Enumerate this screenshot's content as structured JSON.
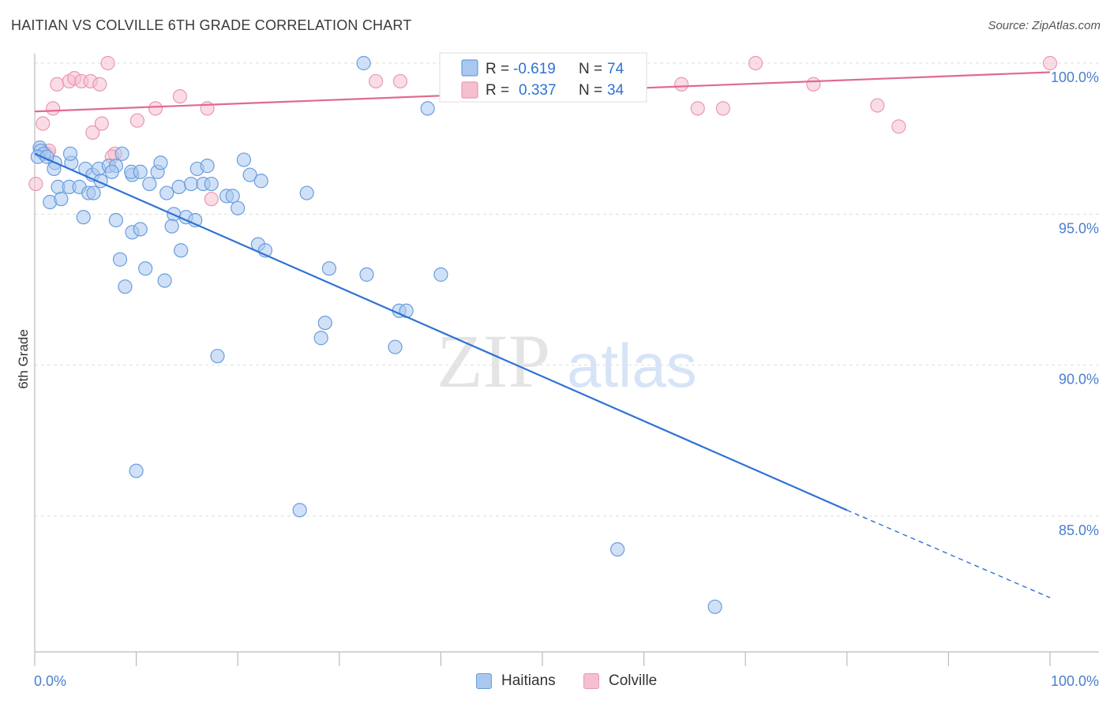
{
  "header": {
    "title": "HAITIAN VS COLVILLE 6TH GRADE CORRELATION CHART",
    "source": "Source: ZipAtlas.com"
  },
  "watermark": {
    "zip": "ZIP",
    "atlas": "atlas"
  },
  "colors": {
    "blue_fill": "#a9c8f0",
    "blue_stroke": "#6a9ddc",
    "blue_line": "#2f72d4",
    "pink_fill": "#f6bfd0",
    "pink_stroke": "#e899b2",
    "pink_line": "#e06a90",
    "tick_text": "#4a7fd0",
    "grid": "#dddddd"
  },
  "legend_box": {
    "rows": [
      {
        "r_label": "R =",
        "r_value": "-0.619",
        "n_label": "N =",
        "n_value": "74"
      },
      {
        "r_label": "R =",
        "r_value": "0.337",
        "n_label": "N =",
        "n_value": "34"
      }
    ]
  },
  "bottom_legend": {
    "haitians": "Haitians",
    "colville": "Colville"
  },
  "chart_data": {
    "type": "scatter",
    "title": "HAITIAN VS COLVILLE 6TH GRADE CORRELATION CHART",
    "xlabel": "",
    "ylabel": "6th Grade",
    "xlim": [
      0,
      100
    ],
    "ylim": [
      80.5,
      100.8
    ],
    "x_tick_labels": [
      "0.0%",
      "100.0%"
    ],
    "y_ticks": [
      85,
      90,
      95,
      100
    ],
    "y_tick_labels": [
      "85.0%",
      "90.0%",
      "95.0%",
      "100.0%"
    ],
    "grid": true,
    "legend_position": "top-center",
    "series": [
      {
        "name": "Haitians",
        "r": -0.619,
        "n": 74,
        "trend": {
          "x0": 0,
          "y0": 97.0,
          "x1": 80,
          "y1": 85.2,
          "dashed_to_x": 100,
          "dashed_to_y": 82.3
        },
        "points": [
          [
            0.5,
            97.2
          ],
          [
            0.6,
            97.1
          ],
          [
            0.9,
            97.0
          ],
          [
            0.3,
            96.9
          ],
          [
            2.0,
            96.7
          ],
          [
            3.6,
            96.7
          ],
          [
            3.5,
            97.0
          ],
          [
            1.9,
            96.5
          ],
          [
            5.0,
            96.5
          ],
          [
            5.7,
            96.3
          ],
          [
            6.3,
            96.5
          ],
          [
            7.3,
            96.6
          ],
          [
            8.0,
            96.6
          ],
          [
            7.6,
            96.4
          ],
          [
            9.6,
            96.3
          ],
          [
            2.3,
            95.9
          ],
          [
            3.4,
            95.9
          ],
          [
            4.4,
            95.9
          ],
          [
            5.3,
            95.7
          ],
          [
            5.8,
            95.7
          ],
          [
            6.5,
            96.1
          ],
          [
            8.6,
            97.0
          ],
          [
            9.5,
            96.4
          ],
          [
            10.4,
            96.4
          ],
          [
            11.3,
            96.0
          ],
          [
            12.1,
            96.4
          ],
          [
            12.4,
            96.7
          ],
          [
            13.0,
            95.7
          ],
          [
            14.2,
            95.9
          ],
          [
            15.4,
            96.0
          ],
          [
            16.0,
            96.5
          ],
          [
            16.6,
            96.0
          ],
          [
            17.0,
            96.6
          ],
          [
            17.4,
            96.0
          ],
          [
            18.9,
            95.6
          ],
          [
            19.5,
            95.6
          ],
          [
            20.0,
            95.2
          ],
          [
            20.6,
            96.8
          ],
          [
            21.2,
            96.3
          ],
          [
            22.3,
            96.1
          ],
          [
            1.5,
            95.4
          ],
          [
            2.6,
            95.5
          ],
          [
            4.8,
            94.9
          ],
          [
            8.0,
            94.8
          ],
          [
            9.6,
            94.4
          ],
          [
            10.4,
            94.5
          ],
          [
            13.7,
            95.0
          ],
          [
            13.5,
            94.6
          ],
          [
            14.9,
            94.9
          ],
          [
            15.8,
            94.8
          ],
          [
            14.4,
            93.8
          ],
          [
            8.4,
            93.5
          ],
          [
            10.9,
            93.2
          ],
          [
            12.8,
            92.8
          ],
          [
            8.9,
            92.6
          ],
          [
            22.0,
            94.0
          ],
          [
            22.7,
            93.8
          ],
          [
            26.8,
            95.7
          ],
          [
            29.0,
            93.2
          ],
          [
            32.7,
            93.0
          ],
          [
            40.0,
            93.0
          ],
          [
            35.9,
            91.8
          ],
          [
            36.6,
            91.8
          ],
          [
            28.6,
            91.4
          ],
          [
            28.2,
            90.9
          ],
          [
            35.5,
            90.6
          ],
          [
            18.0,
            90.3
          ],
          [
            10.0,
            86.5
          ],
          [
            26.1,
            85.2
          ],
          [
            57.4,
            83.9
          ],
          [
            67.0,
            82.0
          ],
          [
            32.4,
            100.0
          ],
          [
            38.7,
            98.5
          ],
          [
            1.2,
            96.9
          ]
        ]
      },
      {
        "name": "Colville",
        "r": 0.337,
        "n": 34,
        "trend": {
          "x0": 0,
          "y0": 98.4,
          "x1": 100,
          "y1": 99.7
        },
        "points": [
          [
            0.1,
            96.0
          ],
          [
            0.8,
            98.0
          ],
          [
            1.3,
            97.0
          ],
          [
            1.8,
            98.5
          ],
          [
            2.2,
            99.3
          ],
          [
            3.4,
            99.4
          ],
          [
            3.9,
            99.5
          ],
          [
            4.6,
            99.4
          ],
          [
            5.5,
            99.4
          ],
          [
            5.7,
            97.7
          ],
          [
            6.4,
            99.3
          ],
          [
            6.6,
            98.0
          ],
          [
            7.2,
            100.0
          ],
          [
            7.9,
            97.0
          ],
          [
            10.1,
            98.1
          ],
          [
            11.9,
            98.5
          ],
          [
            14.3,
            98.9
          ],
          [
            17.0,
            98.5
          ],
          [
            17.4,
            95.5
          ],
          [
            33.6,
            99.4
          ],
          [
            36.0,
            99.4
          ],
          [
            40.6,
            100.0
          ],
          [
            46.7,
            100.0
          ],
          [
            53.7,
            100.0
          ],
          [
            63.7,
            99.3
          ],
          [
            65.3,
            98.5
          ],
          [
            67.8,
            98.5
          ],
          [
            71.0,
            100.0
          ],
          [
            76.7,
            99.3
          ],
          [
            83.0,
            98.6
          ],
          [
            85.1,
            97.9
          ],
          [
            100.0,
            100.0
          ],
          [
            1.4,
            97.1
          ],
          [
            7.6,
            96.9
          ]
        ]
      }
    ]
  }
}
